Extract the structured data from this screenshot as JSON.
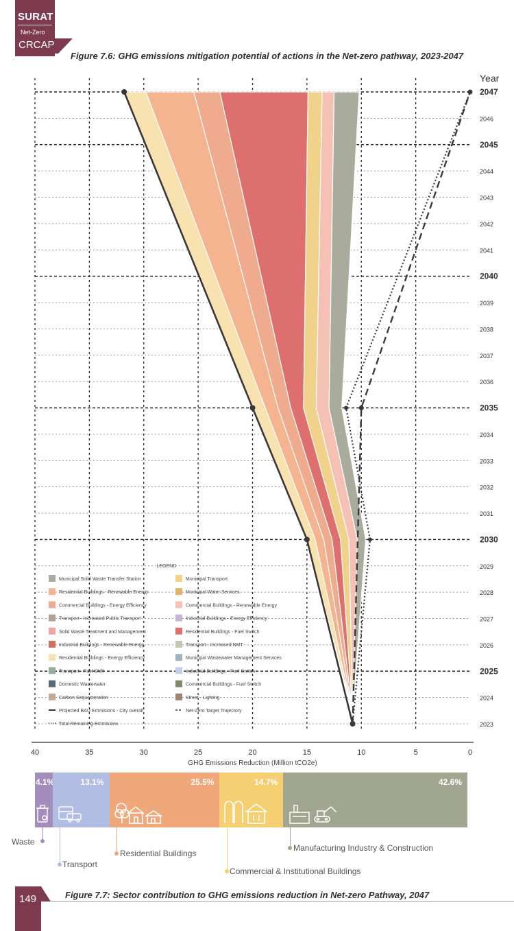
{
  "header": {
    "brand": "SURAT",
    "subtitle": "Net-Zero",
    "plan": "CRCAP"
  },
  "figure_top": {
    "caption": "Figure 7.6: GHG emissions mitigation potential of actions in the Net-zero pathway, 2023-2047"
  },
  "figure_bottom": {
    "caption": "Figure 7.7: Sector contribution to GHG emissions reduction in Net-zero Pathway, 2047"
  },
  "page": {
    "number": "149"
  },
  "chart_data": [
    {
      "type": "area",
      "title": "",
      "xlabel": "GHG Emissions Reduction (Million tCO2e)",
      "ylabel": "Year",
      "x_ticks": [
        "40",
        "35",
        "30",
        "25",
        "20",
        "15",
        "10",
        "5",
        "0"
      ],
      "xlim": [
        40,
        0
      ],
      "ylim": [
        2023,
        2047
      ],
      "y_ticks": [
        "2047",
        "2046",
        "2045",
        "2044",
        "2043",
        "2042",
        "2041",
        "2040",
        "2039",
        "2038",
        "2037",
        "2036",
        "2035",
        "2034",
        "2033",
        "2032",
        "2031",
        "2030",
        "2029",
        "2028",
        "2027",
        "2026",
        "2025",
        "2024",
        "2023"
      ],
      "y_bold_ticks": [
        "2047",
        "2045",
        "2040",
        "2035",
        "2030",
        "2025"
      ],
      "grid": true,
      "legend_title": "LEGEND",
      "legend_placement": "bottom-left",
      "legend": [
        {
          "label": "Municipal Solid Waste Transfer Station",
          "color": "#a9ab9c"
        },
        {
          "label": "Municipal Transport",
          "color": "#f1d28a"
        },
        {
          "label": "Residential Buildings - Renewable Energy",
          "color": "#f4b48f"
        },
        {
          "label": "Municipal Water Services",
          "color": "#dcb66a"
        },
        {
          "label": "Commercial Buildings - Energy Efficiency",
          "color": "#efab8d"
        },
        {
          "label": "Commercial Buildings - Renewable Energy",
          "color": "#f5c1b5"
        },
        {
          "label": "Transport - Increased Public Transport",
          "color": "#b3a297"
        },
        {
          "label": "Industrial Buildings - Energy Efficiency",
          "color": "#c5b6d3"
        },
        {
          "label": "Solid Waste Treatment and Management",
          "color": "#f0a4a4"
        },
        {
          "label": "Residential Buildings - Fuel Switch",
          "color": "#dd6f6f"
        },
        {
          "label": "Industrial Buildings - Renewable Energy",
          "color": "#d0705e"
        },
        {
          "label": "Transport - Increased NMT",
          "color": "#c4c3b5"
        },
        {
          "label": "Residential Buildings - Energy Efficiency",
          "color": "#f8e3b0"
        },
        {
          "label": "Municipal Wastewater Management Services",
          "color": "#a0b3bd"
        },
        {
          "label": "Transport - Fuel Shift",
          "color": "#93ad9d"
        },
        {
          "label": "Industrial Buildings - Fuel Switch",
          "color": "#c6cde6"
        },
        {
          "label": "Domestic Wastewater",
          "color": "#556a7b"
        },
        {
          "label": "Commercial Buildings - Fuel Switch",
          "color": "#7f8a6c"
        },
        {
          "label": "Carbon Sequesteration",
          "color": "#c3aa93"
        },
        {
          "label": "Street - Lighting",
          "color": "#9c8576"
        },
        {
          "label": "Projected BAU Emmisions - City overall",
          "style": "solid-line",
          "color": "#3a3539"
        },
        {
          "label": "Net-Zero Target Trajectory",
          "style": "dashed-line",
          "color": "#3a3a3a"
        },
        {
          "label": "Total Remaining Emmisions",
          "style": "dotted-line",
          "color": "#3a3a3a"
        }
      ],
      "bau_emissions": [
        {
          "year": 2023,
          "value": 10.8
        },
        {
          "year": 2030,
          "value": 15.0
        },
        {
          "year": 2035,
          "value": 20.0
        },
        {
          "year": 2047,
          "value": 31.8
        }
      ],
      "net_zero_target": [
        {
          "year": 2023,
          "value": 10.8
        },
        {
          "year": 2035,
          "value": 10.0
        },
        {
          "year": 2047,
          "value": 0.0
        }
      ],
      "total_remaining": [
        {
          "year": 2023,
          "value": 10.8
        },
        {
          "year": 2030,
          "value": 9.2
        },
        {
          "year": 2035,
          "value": 11.4
        },
        {
          "year": 2047,
          "value": 0.0
        }
      ],
      "band_edges_2047": [
        {
          "name": "Residential Buildings - Energy Efficiency",
          "left": 31.8,
          "right": 29.8
        },
        {
          "name": "Residential Buildings - Renewable Energy",
          "left": 29.8,
          "right": 25.4
        },
        {
          "name": "Commercial Buildings - Energy Efficiency",
          "left": 25.4,
          "right": 23.0
        },
        {
          "name": "Residential Buildings - Fuel Switch",
          "left": 23.0,
          "right": 14.9
        },
        {
          "name": "Municipal Transport",
          "left": 14.9,
          "right": 13.6
        },
        {
          "name": "Commercial Buildings - Renewable Energy",
          "left": 13.6,
          "right": 12.5
        },
        {
          "name": "Municipal Solid Waste Transfer Station",
          "left": 12.5,
          "right": 10.2
        }
      ]
    },
    {
      "type": "bar",
      "title": "",
      "orientation": "horizontal-stacked",
      "categories": [
        "Waste",
        "Transport",
        "Residential Buildings",
        "Commercial & Institutional Buildings",
        "Manufacturing Industry & Construction"
      ],
      "values": [
        4.1,
        13.1,
        25.5,
        14.7,
        42.6
      ],
      "value_labels": [
        "4.1%",
        "13.1%",
        "25.5%",
        "14.7%",
        "42.6%"
      ],
      "colors": [
        "#a48dbd",
        "#b2bde3",
        "#f0a87a",
        "#f6cf73",
        "#a1a690"
      ]
    }
  ]
}
